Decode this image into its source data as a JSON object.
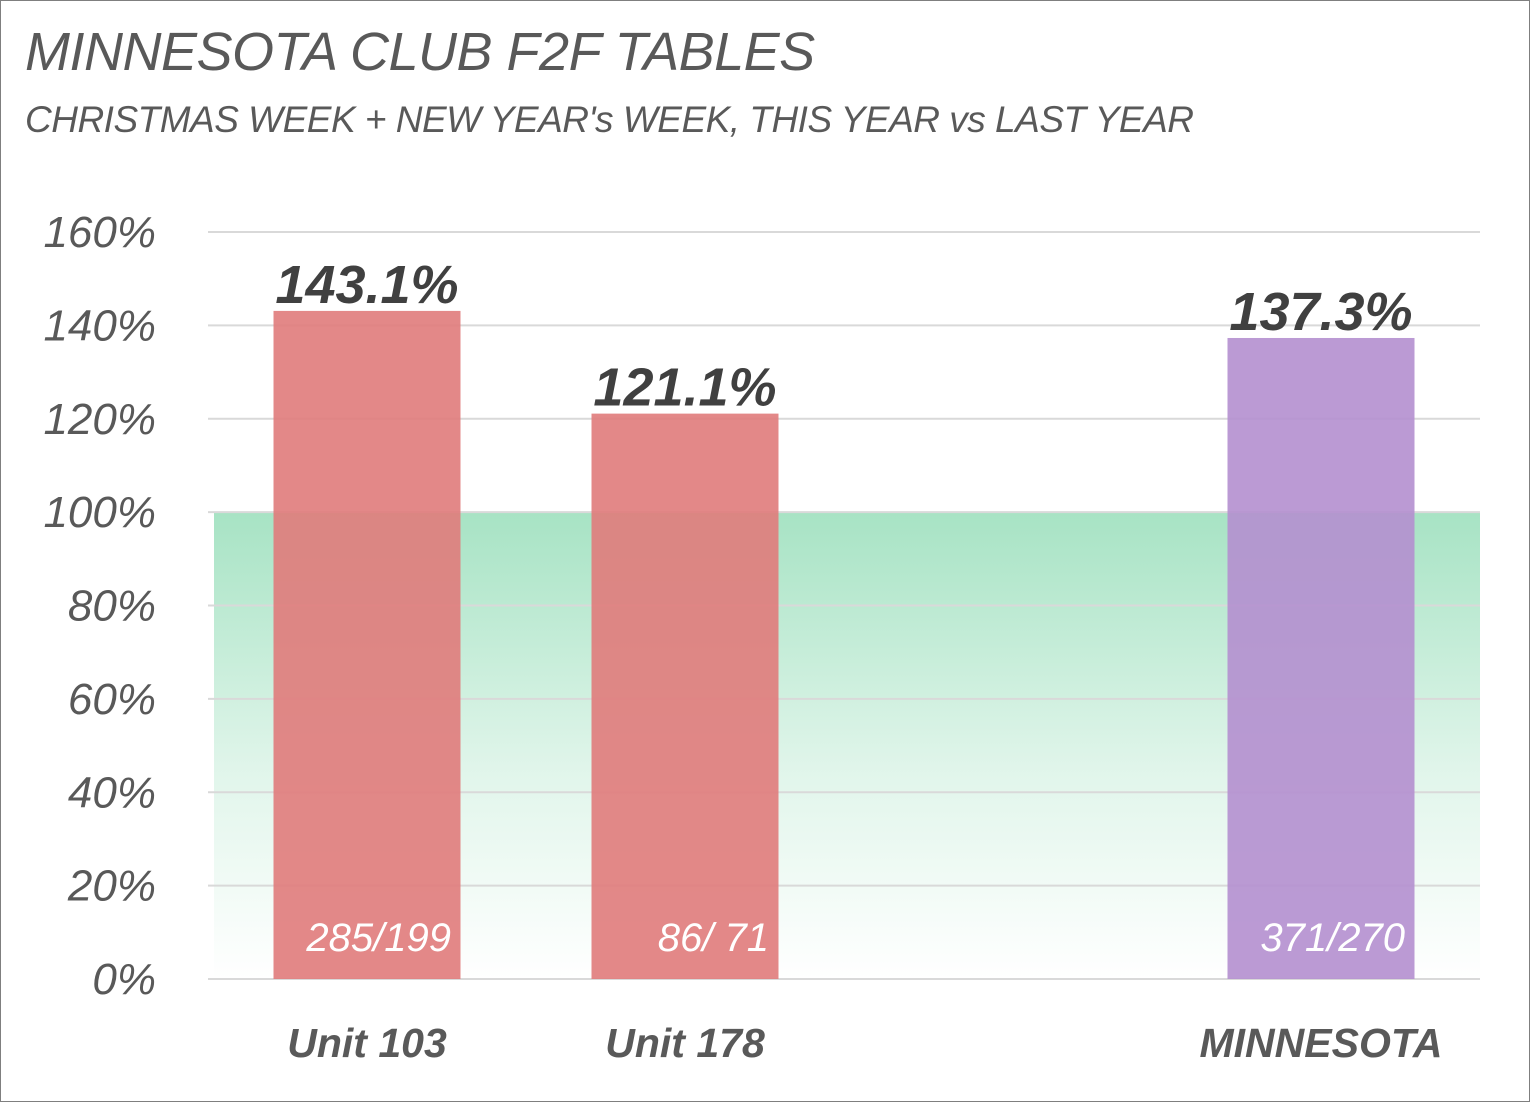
{
  "chart_data": {
    "type": "bar",
    "title": "MINNESOTA CLUB F2F TABLES",
    "subtitle": "CHRISTMAS WEEK + NEW YEAR's WEEK, THIS YEAR vs LAST YEAR",
    "categories": [
      "Unit 103",
      "Unit 178",
      "",
      "MINNESOTA"
    ],
    "values": [
      143.1,
      121.1,
      null,
      137.3
    ],
    "value_labels": [
      "143.1%",
      "121.1%",
      "",
      "137.3%"
    ],
    "inner_labels": [
      "285/199",
      "86/ 71",
      "",
      "371/270"
    ],
    "y_ticks": [
      "0%",
      "20%",
      "40%",
      "60%",
      "80%",
      "100%",
      "120%",
      "140%",
      "160%"
    ],
    "ylim": [
      0,
      160
    ],
    "grid": true,
    "reference_band": {
      "from": 0,
      "to": 100,
      "color": "#a7e3c4"
    },
    "colors": {
      "units": "#e07b7b",
      "state": "#b48fcf",
      "gridline": "#d9d9d9",
      "text": "#595959"
    }
  }
}
